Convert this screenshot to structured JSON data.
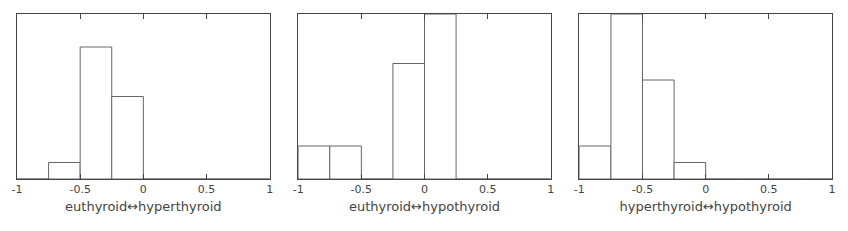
{
  "chart_data": [
    {
      "type": "histogram",
      "xlabel": "euthyroid↔hyperthyroid",
      "bins": [
        -1.0,
        -0.75,
        -0.5,
        -0.25,
        0.0,
        0.25,
        0.5,
        0.75,
        1.0
      ],
      "values": [
        0,
        1,
        8,
        5,
        0,
        0,
        0,
        0
      ],
      "color": "#ffffff",
      "xlim": [
        -1,
        1
      ],
      "xticks": [
        -1,
        -0.5,
        0,
        0.5,
        1
      ],
      "ylim": [
        0,
        10
      ],
      "tick_labels": "x",
      "grid": false
    },
    {
      "type": "histogram",
      "xlabel": "euthyroid↔hypothyroid",
      "bins": [
        -1.0,
        -0.75,
        -0.5,
        -0.25,
        0.0,
        0.25,
        0.5,
        0.75,
        1.0
      ],
      "values": [
        2,
        2,
        0,
        7,
        10,
        0,
        0,
        0
      ],
      "color": "#ffffff",
      "xlim": [
        -1,
        1
      ],
      "xticks": [
        -1,
        -0.5,
        0,
        0.5,
        1
      ],
      "ylim": [
        0,
        10
      ],
      "tick_labels": "x",
      "grid": false
    },
    {
      "type": "histogram",
      "xlabel": "hyperthyroid↔hypothyroid",
      "bins": [
        -1.0,
        -0.75,
        -0.5,
        -0.25,
        0.0,
        0.25,
        0.5,
        0.75,
        1.0
      ],
      "values": [
        2,
        10,
        6,
        1,
        0,
        0,
        0,
        0
      ],
      "color": "#ffffff",
      "xlim": [
        -1,
        1
      ],
      "xticks": [
        -1,
        -0.5,
        0,
        0.5,
        1
      ],
      "ylim": [
        0,
        10
      ],
      "tick_labels": "x",
      "grid": false
    }
  ]
}
